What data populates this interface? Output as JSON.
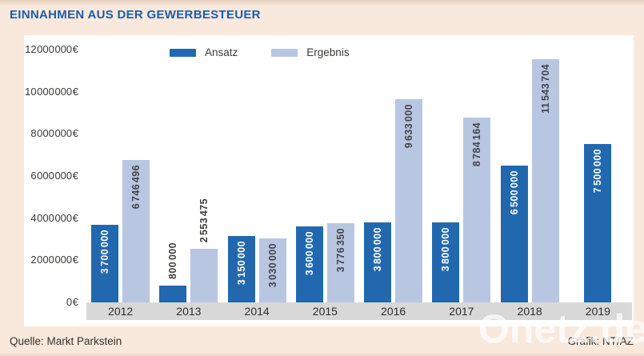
{
  "title": "EINNAHMEN AUS DER GEWERBESTEUER",
  "source": "Quelle: Markt Parkstein",
  "credit": "Grafik: NT/AZ",
  "watermark": "Onetz.de",
  "colors": {
    "accent_title": "#1d5ca7",
    "background": "#f9e9dd",
    "panel": "#ffffff",
    "axis_strip": "#d8d8d8",
    "ansatz": "#2268ae",
    "ergebnis": "#b8c6e2",
    "label_on_dark": "#ffffff",
    "label_on_light": "#45454a",
    "label_outside": "#3e3e3d"
  },
  "y_axis": {
    "tick_labels": [
      "12 000 000 €",
      "10 000 000 €",
      "8 000 000 €",
      "6 000 000 €",
      "4 000 000 €",
      "2 000 000 €",
      "0 €"
    ],
    "tick_values": [
      12000000,
      10000000,
      8000000,
      6000000,
      4000000,
      2000000,
      0
    ]
  },
  "chart_data": {
    "type": "bar",
    "title": "EINNAHMEN AUS DER GEWERBESTEUER",
    "categories": [
      "2012",
      "2013",
      "2014",
      "2015",
      "2016",
      "2017",
      "2018",
      "2019"
    ],
    "series": [
      {
        "name": "Ansatz",
        "color": "#2268ae",
        "values": [
          3700000,
          800000,
          3150000,
          3600000,
          3800000,
          3800000,
          6500000,
          7500000
        ],
        "value_labels": [
          "3 700 000",
          "800 000",
          "3 150 000",
          "3 600 000",
          "3 800 000",
          "3 800 000",
          "6 500 000",
          "7 500 000"
        ]
      },
      {
        "name": "Ergebnis",
        "color": "#b8c6e2",
        "values": [
          6746496,
          2553475,
          3030000,
          3776350,
          9633000,
          8784164,
          11543704,
          null
        ],
        "value_labels": [
          "6 746 496",
          "2 553 475",
          "3 030 000",
          "3 776 350",
          "9 633 000",
          "8 784 164",
          "11 543 704",
          null
        ]
      }
    ],
    "ylim": [
      0,
      12000000
    ],
    "y_tick_step": 2000000,
    "grid": false,
    "legend_position": "top-left",
    "xlabel": "",
    "ylabel": ""
  }
}
